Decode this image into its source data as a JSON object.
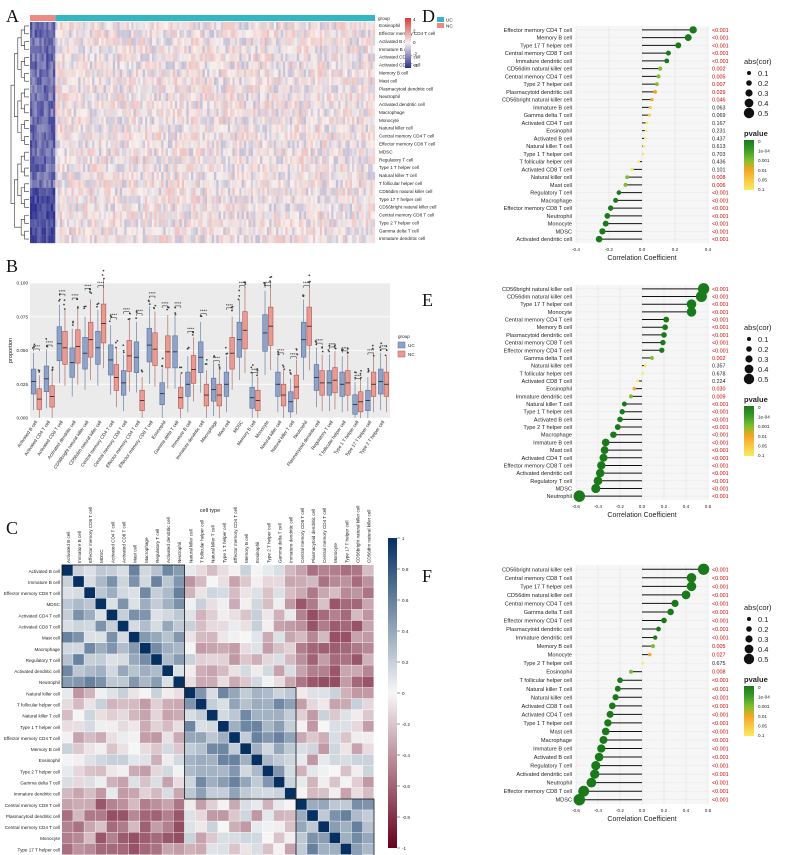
{
  "panels": {
    "A": "A",
    "B": "B",
    "C": "C",
    "D": "D",
    "E": "E",
    "F": "F"
  },
  "colors": {
    "uc": "#35b7c3",
    "nc": "#ef8a83",
    "heat_low": "#2b2f8f",
    "heat_mid": "#f7f0ee",
    "heat_high": "#d63a38",
    "corr_neg": "#67001f",
    "corr_pos": "#053061",
    "lollipop_line": "#111111",
    "sig_text": "#cc0000",
    "ns_text": "#222222"
  },
  "chart_data": [
    {
      "id": "A",
      "type": "heatmap",
      "legend_group_title": "group",
      "legend_groups": [
        "UC",
        "NC"
      ],
      "color_scale_ticks": [
        "4",
        "2",
        "0",
        "-2",
        "-4"
      ],
      "rows": [
        "Eosinophil",
        "Effector memory CD4 T cell",
        "Activated B cell",
        "Immature B cell",
        "Activated CD4 T cell",
        "Activated CD8 T cell",
        "Memory B cell",
        "Mast cell",
        "Plasmacytoid dendritic cell",
        "Neutrophil",
        "Activated dendritic cell",
        "Macrophage",
        "Monocyte",
        "Natural killer cell",
        "Central memory CD4 T cell",
        "Effector memory CD8 T cell",
        "MDSC",
        "Regulatory T cell",
        "Type 1 T helper cell",
        "Natural killer T cell",
        "T follicular helper cell",
        "CD56dim natural killer cell",
        "Type 17 T helper cell",
        "CD56bright natural killer cell",
        "Central memory CD8 T cell",
        "Type 2 T helper cell",
        "Gamma delta T cell",
        "Immature dendritic cell"
      ]
    },
    {
      "id": "B",
      "type": "box",
      "xlabel": "cell type",
      "ylabel": "proportion",
      "ylim": [
        0,
        0.1
      ],
      "yticks": [
        "0.000",
        "0.025",
        "0.050",
        "0.075",
        "0.100"
      ],
      "legend_title": "group",
      "legend_groups": [
        "UC",
        "NC"
      ],
      "categories": [
        "Activated B cell",
        "Activated CD4 T cell",
        "Activated CD8 T cell",
        "Activated dendritic cell",
        "CD56bright natural killer cell",
        "CD56dim natural killer cell",
        "Central memory CD4 T cell",
        "Central memory CD8 T cell",
        "Effector memory CD4 T cell",
        "Effector memory CD8 T cell",
        "Eosinophil",
        "Gamma delta T cell",
        "Immature B cell",
        "Immature dendritic cell",
        "Macrophage",
        "Mast cell",
        "MDSC",
        "Memory B cell",
        "Monocyte",
        "Natural killer cell",
        "Natural killer T cell",
        "Neutrophil",
        "Plasmacytoid dendritic cell",
        "Regulatory T cell",
        "T follicular helper cell",
        "Type 1 T helper cell",
        "Type 17 T helper cell",
        "Type 2 T helper cell"
      ],
      "signif": [
        "****",
        "****",
        "****",
        "****",
        "****",
        "****",
        "****",
        "****",
        "****",
        "****",
        "****",
        "****",
        "****",
        "****",
        "****",
        "****",
        "****",
        "****",
        "****",
        "****",
        "****",
        "****",
        "****",
        "****",
        "****",
        "****",
        "****",
        "****"
      ],
      "series": [
        {
          "name": "UC",
          "medians": [
            0.027,
            0.029,
            0.055,
            0.041,
            0.048,
            0.052,
            0.043,
            0.026,
            0.045,
            0.054,
            0.018,
            0.049,
            0.025,
            0.045,
            0.021,
            0.025,
            0.058,
            0.015,
            0.063,
            0.025,
            0.012,
            0.058,
            0.03,
            0.026,
            0.025,
            0.01,
            0.013,
            0.027
          ]
        },
        {
          "name": "NC",
          "medians": [
            0.014,
            0.016,
            0.052,
            0.053,
            0.058,
            0.07,
            0.03,
            0.046,
            0.013,
            0.051,
            0.049,
            0.015,
            0.036,
            0.017,
            0.017,
            0.048,
            0.065,
            0.013,
            0.068,
            0.017,
            0.023,
            0.068,
            0.026,
            0.028,
            0.026,
            0.012,
            0.025,
            0.025
          ]
        }
      ]
    },
    {
      "id": "C",
      "type": "heatmap",
      "color_scale_ticks": [
        "1",
        "0.8",
        "0.6",
        "0.4",
        "0.2",
        "0",
        "-0.2",
        "-0.4",
        "-0.6",
        "-0.8",
        "-1"
      ],
      "labels": [
        "Activated B cell",
        "Immature B cell",
        "Effector memory CD8 T cell",
        "MDSC",
        "Activated CD4 T cell",
        "Activated CD8 T cell",
        "Mast cell",
        "Macrophage",
        "Regulatory T cell",
        "Activated dendritic cell",
        "Neutrophil",
        "Natural killer cell",
        "T follicular helper cell",
        "Natural killer T cell",
        "Type 1 T helper cell",
        "Effector memory CD4 T cell",
        "Memory B cell",
        "Eosinophil",
        "Type 2 T helper cell",
        "Gamma delta T cell",
        "Immature dendritic cell",
        "Central memory CD8 T cell",
        "Plasmacytoid dendritic cell",
        "Central memory CD4 T cell",
        "Monocyte",
        "Type 17 T helper cell",
        "CD56bright natural killer cell",
        "CD56dim natural killer cell"
      ],
      "cluster_sizes": [
        11,
        10,
        7
      ]
    },
    {
      "id": "D",
      "type": "lollipop",
      "xlabel": "Correlation Coefficient",
      "xlim": [
        -0.4,
        0.4
      ],
      "xticks": [
        -0.4,
        -0.2,
        0.0,
        0.2,
        0.4
      ],
      "size_legend_title": "abs(cor)",
      "size_legend": [
        "0.1",
        "0.2",
        "0.3",
        "0.4",
        "0.5"
      ],
      "color_legend_title": "pvalue",
      "color_legend": [
        "0",
        "1e-04",
        "0.001",
        "0.01",
        "0.05",
        "0.1"
      ],
      "rows": [
        {
          "label": "Effector memory CD4 T cell",
          "cor": 0.31,
          "p": "<0.001"
        },
        {
          "label": "Memory B cell",
          "cor": 0.28,
          "p": "<0.001"
        },
        {
          "label": "Type 17 T helper cell",
          "cor": 0.22,
          "p": "<0.001"
        },
        {
          "label": "Central memory CD8 T cell",
          "cor": 0.16,
          "p": "<0.001"
        },
        {
          "label": "Immature dendritic cell",
          "cor": 0.15,
          "p": "<0.001"
        },
        {
          "label": "CD56dim natural killer cell",
          "cor": 0.11,
          "p": "0.002"
        },
        {
          "label": "Central memory CD4 T cell",
          "cor": 0.1,
          "p": "0.005"
        },
        {
          "label": "Type 2 T helper cell",
          "cor": 0.09,
          "p": "0.007"
        },
        {
          "label": "Plasmacytoid dendritic cell",
          "cor": 0.08,
          "p": "0.029"
        },
        {
          "label": "CD56bright natural killer cell",
          "cor": 0.06,
          "p": "0.046"
        },
        {
          "label": "Immature B cell",
          "cor": 0.05,
          "p": "0.063"
        },
        {
          "label": "Gamma delta T cell",
          "cor": 0.045,
          "p": "0.069"
        },
        {
          "label": "Activated CD4 T cell",
          "cor": 0.03,
          "p": "0.167"
        },
        {
          "label": "Eosinophil",
          "cor": 0.025,
          "p": "0.231"
        },
        {
          "label": "Activated B cell",
          "cor": 0.02,
          "p": "0.437"
        },
        {
          "label": "Natural killer T cell",
          "cor": 0.012,
          "p": "0.613"
        },
        {
          "label": "Type 1 T helper cell",
          "cor": 0.008,
          "p": "0.703"
        },
        {
          "label": "T follicular helper cell",
          "cor": -0.02,
          "p": "0.436"
        },
        {
          "label": "Activated CD8 T cell",
          "cor": -0.06,
          "p": "0.101"
        },
        {
          "label": "Natural killer cell",
          "cor": -0.09,
          "p": "0.008"
        },
        {
          "label": "Mast cell",
          "cor": -0.1,
          "p": "0.006"
        },
        {
          "label": "Regulatory T cell",
          "cor": -0.14,
          "p": "<0.001"
        },
        {
          "label": "Macrophage",
          "cor": -0.16,
          "p": "<0.001"
        },
        {
          "label": "Effector memory CD8 T cell",
          "cor": -0.19,
          "p": "<0.001"
        },
        {
          "label": "Neutrophil",
          "cor": -0.21,
          "p": "<0.001"
        },
        {
          "label": "Monocyte",
          "cor": -0.22,
          "p": "<0.001"
        },
        {
          "label": "MDSC",
          "cor": -0.24,
          "p": "<0.001"
        },
        {
          "label": "Activated dendritic cell",
          "cor": -0.26,
          "p": "<0.001"
        }
      ]
    },
    {
      "id": "E",
      "type": "lollipop",
      "xlabel": "Correlation Coefficient",
      "xlim": [
        -0.6,
        0.6
      ],
      "xticks": [
        -0.6,
        -0.4,
        -0.2,
        0.0,
        0.2,
        0.4,
        0.6
      ],
      "size_legend_title": "abs(cor)",
      "size_legend": [
        "0.1",
        "0.2",
        "0.3",
        "0.4",
        "0.5"
      ],
      "color_legend_title": "pvalue",
      "color_legend": [
        "0",
        "1e-04",
        "0.001",
        "0.01",
        "0.05",
        "0.1"
      ],
      "rows": [
        {
          "label": "CD56bright natural killer cell",
          "cor": 0.56,
          "p": "<0.001"
        },
        {
          "label": "CD56dim natural killer cell",
          "cor": 0.54,
          "p": "<0.001"
        },
        {
          "label": "Type 17 T helper cell",
          "cor": 0.45,
          "p": "<0.001"
        },
        {
          "label": "Monocyte",
          "cor": 0.45,
          "p": "<0.001"
        },
        {
          "label": "Central memory CD4 T cell",
          "cor": 0.22,
          "p": "<0.001"
        },
        {
          "label": "Memory B cell",
          "cor": 0.21,
          "p": "<0.001"
        },
        {
          "label": "Plasmacytoid dendritic cell",
          "cor": 0.2,
          "p": "<0.001"
        },
        {
          "label": "Central memory CD8 T cell",
          "cor": 0.19,
          "p": "<0.001"
        },
        {
          "label": "Effector memory CD4 T cell",
          "cor": 0.18,
          "p": "<0.001"
        },
        {
          "label": "Gamma delta T cell",
          "cor": 0.09,
          "p": "0.002"
        },
        {
          "label": "Natural killer cell",
          "cor": 0.03,
          "p": "0.357"
        },
        {
          "label": "T follicular helper cell",
          "cor": 0.01,
          "p": "0.678"
        },
        {
          "label": "Activated CD8 T cell",
          "cor": -0.04,
          "p": "0.224"
        },
        {
          "label": "Eosinophil",
          "cor": -0.07,
          "p": "0.030"
        },
        {
          "label": "Immature dendritic cell",
          "cor": -0.1,
          "p": "0.009"
        },
        {
          "label": "Natural killer T cell",
          "cor": -0.16,
          "p": "<0.001"
        },
        {
          "label": "Type 1 T helper cell",
          "cor": -0.18,
          "p": "<0.001"
        },
        {
          "label": "Activated B cell",
          "cor": -0.2,
          "p": "<0.001"
        },
        {
          "label": "Type 2 T helper cell",
          "cor": -0.22,
          "p": "<0.001"
        },
        {
          "label": "Macrophage",
          "cor": -0.26,
          "p": "<0.001"
        },
        {
          "label": "Immature B cell",
          "cor": -0.33,
          "p": "<0.001"
        },
        {
          "label": "Mast cell",
          "cor": -0.34,
          "p": "<0.001"
        },
        {
          "label": "Activated CD4 T cell",
          "cor": -0.35,
          "p": "<0.001"
        },
        {
          "label": "Effector memory CD8 T cell",
          "cor": -0.37,
          "p": "<0.001"
        },
        {
          "label": "Activated dendritic cell",
          "cor": -0.38,
          "p": "<0.001"
        },
        {
          "label": "Regulatory T cell",
          "cor": -0.4,
          "p": "<0.001"
        },
        {
          "label": "MDSC",
          "cor": -0.42,
          "p": "<0.001"
        },
        {
          "label": "Neutrophil",
          "cor": -0.57,
          "p": "<0.001"
        }
      ]
    },
    {
      "id": "F",
      "type": "lollipop",
      "xlabel": "Correlation Coefficient",
      "xlim": [
        -0.6,
        0.6
      ],
      "xticks": [
        -0.6,
        -0.4,
        -0.2,
        0.0,
        0.2,
        0.4,
        0.6
      ],
      "size_legend_title": "abs(cor)",
      "size_legend": [
        "0.1",
        "0.2",
        "0.3",
        "0.4",
        "0.5"
      ],
      "color_legend_title": "pvalue",
      "color_legend": [
        "0",
        "1e-04",
        "0.001",
        "0.01",
        "0.05",
        "0.1"
      ],
      "rows": [
        {
          "label": "CD56bright natural killer cell",
          "cor": 0.56,
          "p": "<0.001"
        },
        {
          "label": "Central memory CD8 T cell",
          "cor": 0.45,
          "p": "<0.001"
        },
        {
          "label": "Type 17 T helper cell",
          "cor": 0.45,
          "p": "<0.001"
        },
        {
          "label": "CD56dim natural killer cell",
          "cor": 0.4,
          "p": "<0.001"
        },
        {
          "label": "Central memory CD4 T cell",
          "cor": 0.3,
          "p": "<0.001"
        },
        {
          "label": "Gamma delta T cell",
          "cor": 0.26,
          "p": "<0.001"
        },
        {
          "label": "Effector memory CD4 T cell",
          "cor": 0.2,
          "p": "<0.001"
        },
        {
          "label": "Plasmacytoid dendritic cell",
          "cor": 0.15,
          "p": "<0.001"
        },
        {
          "label": "Immature dendritic cell",
          "cor": 0.12,
          "p": "<0.001"
        },
        {
          "label": "Memory B cell",
          "cor": 0.1,
          "p": "0.005"
        },
        {
          "label": "Monocyte",
          "cor": 0.07,
          "p": "0.027"
        },
        {
          "label": "Type 2 T helper cell",
          "cor": 0.01,
          "p": "0.675"
        },
        {
          "label": "Eosinophil",
          "cor": -0.1,
          "p": "0.008"
        },
        {
          "label": "T follicular helper cell",
          "cor": -0.2,
          "p": "<0.001"
        },
        {
          "label": "Natural killer T cell",
          "cor": -0.22,
          "p": "<0.001"
        },
        {
          "label": "Natural killer cell",
          "cor": -0.24,
          "p": "<0.001"
        },
        {
          "label": "Activated CD8 T cell",
          "cor": -0.27,
          "p": "<0.001"
        },
        {
          "label": "Activated CD4 T cell",
          "cor": -0.29,
          "p": "<0.001"
        },
        {
          "label": "Type 1 T helper cell",
          "cor": -0.31,
          "p": "<0.001"
        },
        {
          "label": "Mast cell",
          "cor": -0.33,
          "p": "<0.001"
        },
        {
          "label": "Macrophage",
          "cor": -0.35,
          "p": "<0.001"
        },
        {
          "label": "Immature B cell",
          "cor": -0.37,
          "p": "<0.001"
        },
        {
          "label": "Activated B cell",
          "cor": -0.39,
          "p": "<0.001"
        },
        {
          "label": "Regulatory T cell",
          "cor": -0.42,
          "p": "<0.001"
        },
        {
          "label": "Activated dendritic cell",
          "cor": -0.43,
          "p": "<0.001"
        },
        {
          "label": "Neutrophil",
          "cor": -0.46,
          "p": "<0.001"
        },
        {
          "label": "Effector memory CD8 T cell",
          "cor": -0.53,
          "p": "<0.001"
        },
        {
          "label": "MDSC",
          "cor": -0.57,
          "p": "<0.001"
        }
      ]
    }
  ]
}
